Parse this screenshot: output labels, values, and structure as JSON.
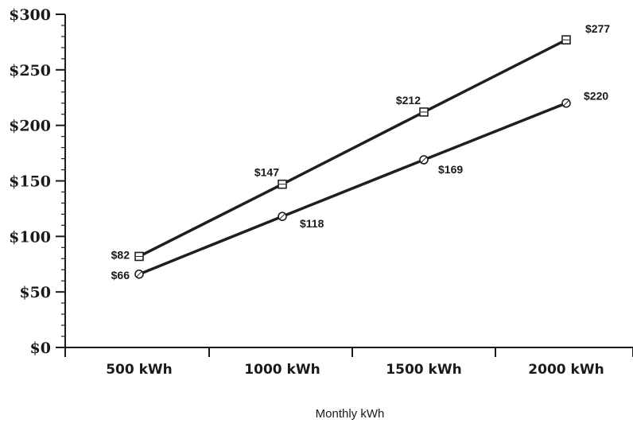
{
  "chart_data": {
    "type": "line",
    "title": "",
    "xlabel": "Monthly kWh",
    "ylabel": "",
    "categories": [
      "500 kWh",
      "1000 kWh",
      "1500 kWh",
      "2000 kWh"
    ],
    "ylim": [
      0,
      300
    ],
    "yticks": [
      0,
      50,
      100,
      150,
      200,
      250,
      300
    ],
    "ytick_labels": [
      "$0",
      "$50",
      "$100",
      "$150",
      "$200",
      "$250",
      "$300"
    ],
    "grid": false,
    "legend": "none",
    "series": [
      {
        "marker": "square",
        "values": [
          82,
          147,
          212,
          277
        ],
        "labels": [
          "$82",
          "$147",
          "$212",
          "$277"
        ],
        "color": "#1f1f1f"
      },
      {
        "marker": "circle",
        "values": [
          66,
          118,
          169,
          220
        ],
        "labels": [
          "$66",
          "$118",
          "$169",
          "$220"
        ],
        "color": "#1f1f1f"
      }
    ]
  }
}
